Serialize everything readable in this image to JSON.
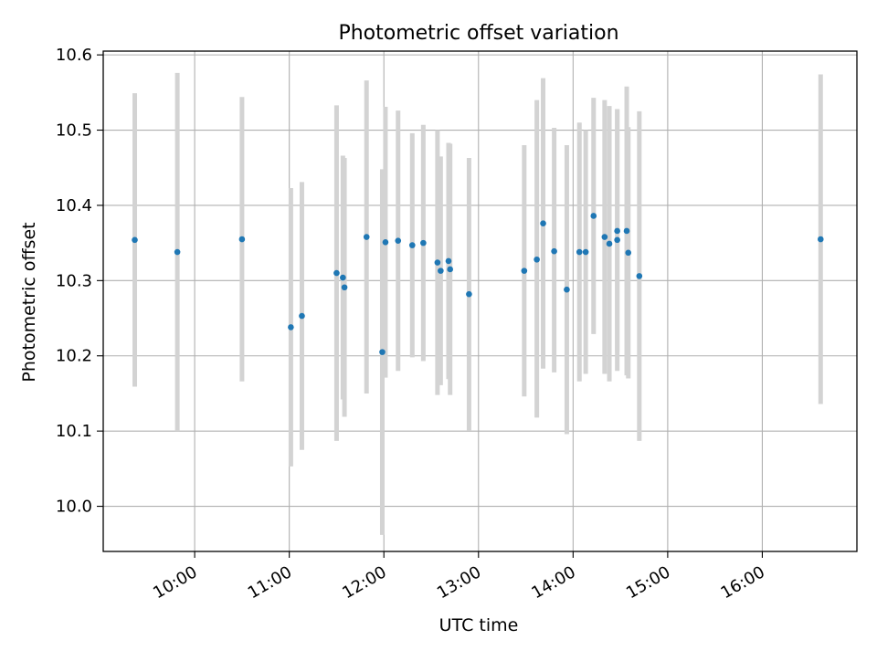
{
  "chart_data": {
    "type": "scatter",
    "title": "Photometric offset variation",
    "xlabel": "UTC time",
    "ylabel": "Photometric offset",
    "xlim": [
      "09:02",
      "17:00"
    ],
    "ylim": [
      9.94,
      10.605
    ],
    "x_tick_labels": [
      "10:00",
      "11:00",
      "12:00",
      "13:00",
      "14:00",
      "15:00",
      "16:00"
    ],
    "y_tick_labels": [
      "10.0",
      "10.1",
      "10.2",
      "10.3",
      "10.4",
      "10.5",
      "10.6"
    ],
    "x_tick_values": [
      "10:00",
      "11:00",
      "12:00",
      "13:00",
      "14:00",
      "15:00",
      "16:00"
    ],
    "y_tick_values": [
      10.0,
      10.1,
      10.2,
      10.3,
      10.4,
      10.5,
      10.6
    ],
    "grid": true,
    "point_color": "#1f77b4",
    "errorbar_color": "#d3d3d3",
    "series": [
      {
        "points": [
          {
            "x": "09:22",
            "y": 10.354,
            "ylow": 10.159,
            "yhigh": 10.549
          },
          {
            "x": "09:49",
            "y": 10.338,
            "ylow": 10.1,
            "yhigh": 10.576
          },
          {
            "x": "10:30",
            "y": 10.355,
            "ylow": 10.166,
            "yhigh": 10.544
          },
          {
            "x": "11:01",
            "y": 10.238,
            "ylow": 10.053,
            "yhigh": 10.423
          },
          {
            "x": "11:08",
            "y": 10.253,
            "ylow": 10.075,
            "yhigh": 10.431
          },
          {
            "x": "11:30",
            "y": 10.31,
            "ylow": 10.087,
            "yhigh": 10.533
          },
          {
            "x": "11:34",
            "y": 10.304,
            "ylow": 10.142,
            "yhigh": 10.466
          },
          {
            "x": "11:35",
            "y": 10.291,
            "ylow": 10.119,
            "yhigh": 10.463
          },
          {
            "x": "11:49",
            "y": 10.358,
            "ylow": 10.15,
            "yhigh": 10.566
          },
          {
            "x": "11:59",
            "y": 10.205,
            "ylow": 9.962,
            "yhigh": 10.448
          },
          {
            "x": "12:01",
            "y": 10.351,
            "ylow": 10.171,
            "yhigh": 10.531
          },
          {
            "x": "12:09",
            "y": 10.353,
            "ylow": 10.18,
            "yhigh": 10.526
          },
          {
            "x": "12:18",
            "y": 10.347,
            "ylow": 10.198,
            "yhigh": 10.496
          },
          {
            "x": "12:25",
            "y": 10.35,
            "ylow": 10.193,
            "yhigh": 10.507
          },
          {
            "x": "12:34",
            "y": 10.324,
            "ylow": 10.148,
            "yhigh": 10.5
          },
          {
            "x": "12:36",
            "y": 10.313,
            "ylow": 10.161,
            "yhigh": 10.465
          },
          {
            "x": "12:41",
            "y": 10.326,
            "ylow": 10.169,
            "yhigh": 10.483
          },
          {
            "x": "12:42",
            "y": 10.315,
            "ylow": 10.148,
            "yhigh": 10.482
          },
          {
            "x": "12:54",
            "y": 10.282,
            "ylow": 10.101,
            "yhigh": 10.463
          },
          {
            "x": "13:29",
            "y": 10.313,
            "ylow": 10.146,
            "yhigh": 10.48
          },
          {
            "x": "13:37",
            "y": 10.328,
            "ylow": 10.118,
            "yhigh": 10.54
          },
          {
            "x": "13:41",
            "y": 10.376,
            "ylow": 10.183,
            "yhigh": 10.569
          },
          {
            "x": "13:48",
            "y": 10.339,
            "ylow": 10.178,
            "yhigh": 10.503
          },
          {
            "x": "13:56",
            "y": 10.288,
            "ylow": 10.096,
            "yhigh": 10.48
          },
          {
            "x": "14:04",
            "y": 10.338,
            "ylow": 10.166,
            "yhigh": 10.51
          },
          {
            "x": "14:08",
            "y": 10.338,
            "ylow": 10.176,
            "yhigh": 10.5
          },
          {
            "x": "14:13",
            "y": 10.386,
            "ylow": 10.229,
            "yhigh": 10.543
          },
          {
            "x": "14:20",
            "y": 10.358,
            "ylow": 10.176,
            "yhigh": 10.54
          },
          {
            "x": "14:23",
            "y": 10.349,
            "ylow": 10.166,
            "yhigh": 10.532
          },
          {
            "x": "14:28",
            "y": 10.354,
            "ylow": 10.18,
            "yhigh": 10.528
          },
          {
            "x": "14:28",
            "y": 10.366,
            "ylow": 10.205,
            "yhigh": 10.527
          },
          {
            "x": "14:34",
            "y": 10.366,
            "ylow": 10.174,
            "yhigh": 10.558
          },
          {
            "x": "14:35",
            "y": 10.337,
            "ylow": 10.17,
            "yhigh": 10.504
          },
          {
            "x": "14:42",
            "y": 10.306,
            "ylow": 10.087,
            "yhigh": 10.525
          },
          {
            "x": "16:37",
            "y": 10.355,
            "ylow": 10.136,
            "yhigh": 10.574
          }
        ]
      }
    ]
  }
}
